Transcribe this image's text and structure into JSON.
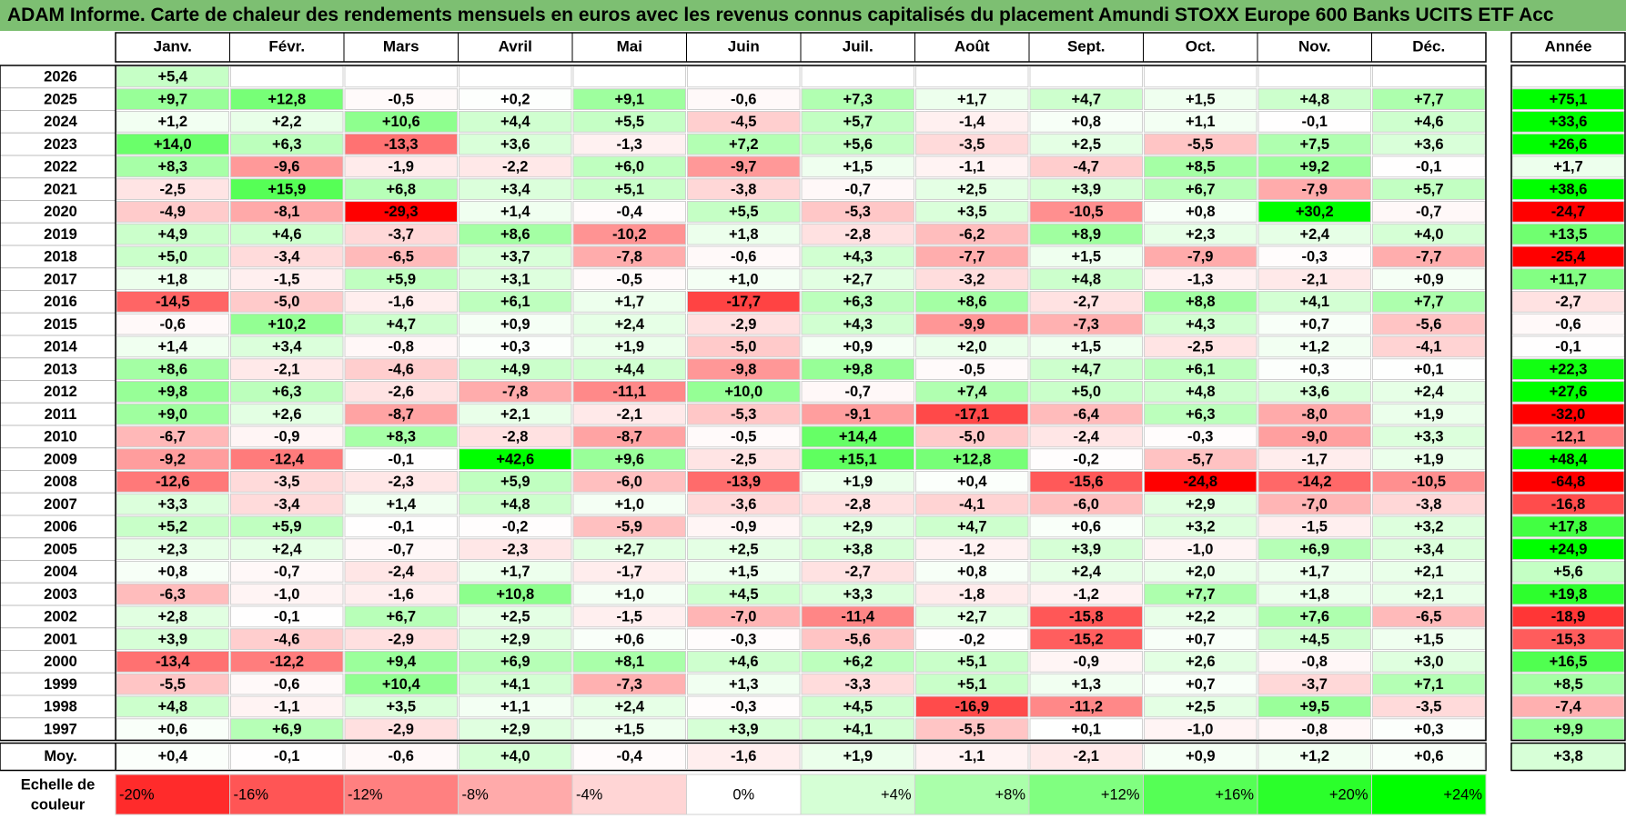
{
  "title": "ADAM Informe. Carte de chaleur des rendements mensuels en euros avec les revenus connus capitalisés du placement Amundi STOXX Europe 600 Banks UCITS ETF Acc",
  "chart_data": {
    "type": "heatmap",
    "title": "ADAM Informe. Carte de chaleur des rendements mensuels en euros avec les revenus connus capitalisés du placement Amundi STOXX Europe 600 Banks UCITS ETF Acc",
    "months": [
      "Janv.",
      "Févr.",
      "Mars",
      "Avril",
      "Mai",
      "Juin",
      "Juil.",
      "Août",
      "Sept.",
      "Oct.",
      "Nov.",
      "Déc."
    ],
    "year_header": "Année",
    "rows": [
      {
        "year": "2026",
        "months": [
          "+5,4",
          "",
          "",
          "",
          "",
          "",
          "",
          "",
          "",
          "",
          "",
          ""
        ],
        "annual": ""
      },
      {
        "year": "2025",
        "months": [
          "+9,7",
          "+12,8",
          "-0,5",
          "+0,2",
          "+9,1",
          "-0,6",
          "+7,3",
          "+1,7",
          "+4,7",
          "+1,5",
          "+4,8",
          "+7,7"
        ],
        "annual": "+75,1"
      },
      {
        "year": "2024",
        "months": [
          "+1,2",
          "+2,2",
          "+10,6",
          "+4,4",
          "+5,5",
          "-4,5",
          "+5,7",
          "-1,4",
          "+0,8",
          "+1,1",
          "-0,1",
          "+4,6"
        ],
        "annual": "+33,6"
      },
      {
        "year": "2023",
        "months": [
          "+14,0",
          "+6,3",
          "-13,3",
          "+3,6",
          "-1,3",
          "+7,2",
          "+5,6",
          "-3,5",
          "+2,5",
          "-5,5",
          "+7,5",
          "+3,6"
        ],
        "annual": "+26,6"
      },
      {
        "year": "2022",
        "months": [
          "+8,3",
          "-9,6",
          "-1,9",
          "-2,2",
          "+6,0",
          "-9,7",
          "+1,5",
          "-1,1",
          "-4,7",
          "+8,5",
          "+9,2",
          "-0,1"
        ],
        "annual": "+1,7"
      },
      {
        "year": "2021",
        "months": [
          "-2,5",
          "+15,9",
          "+6,8",
          "+3,4",
          "+5,1",
          "-3,8",
          "-0,7",
          "+2,5",
          "+3,9",
          "+6,7",
          "-7,9",
          "+5,7"
        ],
        "annual": "+38,6"
      },
      {
        "year": "2020",
        "months": [
          "-4,9",
          "-8,1",
          "-29,3",
          "+1,4",
          "-0,4",
          "+5,5",
          "-5,3",
          "+3,5",
          "-10,5",
          "+0,8",
          "+30,2",
          "-0,7"
        ],
        "annual": "-24,7"
      },
      {
        "year": "2019",
        "months": [
          "+4,9",
          "+4,6",
          "-3,7",
          "+8,6",
          "-10,2",
          "+1,8",
          "-2,8",
          "-6,2",
          "+8,9",
          "+2,3",
          "+2,4",
          "+4,0"
        ],
        "annual": "+13,5"
      },
      {
        "year": "2018",
        "months": [
          "+5,0",
          "-3,4",
          "-6,5",
          "+3,7",
          "-7,8",
          "-0,6",
          "+4,3",
          "-7,7",
          "+1,5",
          "-7,9",
          "-0,3",
          "-7,7"
        ],
        "annual": "-25,4"
      },
      {
        "year": "2017",
        "months": [
          "+1,8",
          "-1,5",
          "+5,9",
          "+3,1",
          "-0,5",
          "+1,0",
          "+2,7",
          "-3,2",
          "+4,8",
          "-1,3",
          "-2,1",
          "+0,9"
        ],
        "annual": "+11,7"
      },
      {
        "year": "2016",
        "months": [
          "-14,5",
          "-5,0",
          "-1,6",
          "+6,1",
          "+1,7",
          "-17,7",
          "+6,3",
          "+8,6",
          "-2,7",
          "+8,8",
          "+4,1",
          "+7,7"
        ],
        "annual": "-2,7"
      },
      {
        "year": "2015",
        "months": [
          "-0,6",
          "+10,2",
          "+4,7",
          "+0,9",
          "+2,4",
          "-2,9",
          "+4,3",
          "-9,9",
          "-7,3",
          "+4,3",
          "+0,7",
          "-5,6"
        ],
        "annual": "-0,6"
      },
      {
        "year": "2014",
        "months": [
          "+1,4",
          "+3,4",
          "-0,8",
          "+0,3",
          "+1,9",
          "-5,0",
          "+0,9",
          "+2,0",
          "+1,5",
          "-2,5",
          "+1,2",
          "-4,1"
        ],
        "annual": "-0,1"
      },
      {
        "year": "2013",
        "months": [
          "+8,6",
          "-2,1",
          "-4,6",
          "+4,9",
          "+4,4",
          "-9,8",
          "+9,8",
          "-0,5",
          "+4,7",
          "+6,1",
          "+0,3",
          "+0,1"
        ],
        "annual": "+22,3"
      },
      {
        "year": "2012",
        "months": [
          "+9,8",
          "+6,3",
          "-2,6",
          "-7,8",
          "-11,1",
          "+10,0",
          "-0,7",
          "+7,4",
          "+5,0",
          "+4,8",
          "+3,6",
          "+2,4"
        ],
        "annual": "+27,6"
      },
      {
        "year": "2011",
        "months": [
          "+9,0",
          "+2,6",
          "-8,7",
          "+2,1",
          "-2,1",
          "-5,3",
          "-9,1",
          "-17,1",
          "-6,4",
          "+6,3",
          "-8,0",
          "+1,9"
        ],
        "annual": "-32,0"
      },
      {
        "year": "2010",
        "months": [
          "-6,7",
          "-0,9",
          "+8,3",
          "-2,8",
          "-8,7",
          "-0,5",
          "+14,4",
          "-5,0",
          "-2,4",
          "-0,3",
          "-9,0",
          "+3,3"
        ],
        "annual": "-12,1"
      },
      {
        "year": "2009",
        "months": [
          "-9,2",
          "-12,4",
          "-0,1",
          "+42,6",
          "+9,6",
          "-2,5",
          "+15,1",
          "+12,8",
          "-0,2",
          "-5,7",
          "-1,7",
          "+1,9"
        ],
        "annual": "+48,4"
      },
      {
        "year": "2008",
        "months": [
          "-12,6",
          "-3,5",
          "-2,3",
          "+5,9",
          "-6,0",
          "-13,9",
          "+1,9",
          "+0,4",
          "-15,6",
          "-24,8",
          "-14,2",
          "-10,5"
        ],
        "annual": "-64,8"
      },
      {
        "year": "2007",
        "months": [
          "+3,3",
          "-3,4",
          "+1,4",
          "+4,8",
          "+1,0",
          "-3,6",
          "-2,8",
          "-4,1",
          "-6,0",
          "+2,9",
          "-7,0",
          "-3,8"
        ],
        "annual": "-16,8"
      },
      {
        "year": "2006",
        "months": [
          "+5,2",
          "+5,9",
          "-0,1",
          "-0,2",
          "-5,9",
          "-0,9",
          "+2,9",
          "+4,7",
          "+0,6",
          "+3,2",
          "-1,5",
          "+3,2"
        ],
        "annual": "+17,8"
      },
      {
        "year": "2005",
        "months": [
          "+2,3",
          "+2,4",
          "-0,7",
          "-2,3",
          "+2,7",
          "+2,5",
          "+3,8",
          "-1,2",
          "+3,9",
          "-1,0",
          "+6,9",
          "+3,4"
        ],
        "annual": "+24,9"
      },
      {
        "year": "2004",
        "months": [
          "+0,8",
          "-0,7",
          "-2,4",
          "+1,7",
          "-1,7",
          "+1,5",
          "-2,7",
          "+0,8",
          "+2,4",
          "+2,0",
          "+1,7",
          "+2,1"
        ],
        "annual": "+5,6"
      },
      {
        "year": "2003",
        "months": [
          "-6,3",
          "-1,0",
          "-1,6",
          "+10,8",
          "+1,0",
          "+4,5",
          "+3,3",
          "-1,8",
          "-1,2",
          "+7,7",
          "+1,8",
          "+2,1"
        ],
        "annual": "+19,8"
      },
      {
        "year": "2002",
        "months": [
          "+2,8",
          "-0,1",
          "+6,7",
          "+2,5",
          "-1,5",
          "-7,0",
          "-11,4",
          "+2,7",
          "-15,8",
          "+2,2",
          "+7,6",
          "-6,5"
        ],
        "annual": "-18,9"
      },
      {
        "year": "2001",
        "months": [
          "+3,9",
          "-4,6",
          "-2,9",
          "+2,9",
          "+0,6",
          "-0,3",
          "-5,6",
          "-0,2",
          "-15,2",
          "+0,7",
          "+4,5",
          "+1,5"
        ],
        "annual": "-15,3"
      },
      {
        "year": "2000",
        "months": [
          "-13,4",
          "-12,2",
          "+9,4",
          "+6,9",
          "+8,1",
          "+4,6",
          "+6,2",
          "+5,1",
          "-0,9",
          "+2,6",
          "-0,8",
          "+3,0"
        ],
        "annual": "+16,5"
      },
      {
        "year": "1999",
        "months": [
          "-5,5",
          "-0,6",
          "+10,4",
          "+4,1",
          "-7,3",
          "+1,3",
          "-3,3",
          "+5,1",
          "+1,3",
          "+0,7",
          "-3,7",
          "+7,1"
        ],
        "annual": "+8,5"
      },
      {
        "year": "1998",
        "months": [
          "+4,8",
          "-1,1",
          "+3,5",
          "+1,1",
          "+2,4",
          "-0,3",
          "+4,5",
          "-16,9",
          "-11,2",
          "+2,5",
          "+9,5",
          "-3,5"
        ],
        "annual": "-7,4"
      },
      {
        "year": "1997",
        "months": [
          "+0,6",
          "+6,9",
          "-2,9",
          "+2,9",
          "+1,5",
          "+3,9",
          "+4,1",
          "-5,5",
          "+0,1",
          "-1,0",
          "-0,8",
          "+0,3"
        ],
        "annual": "+9,9"
      }
    ],
    "average": {
      "label": "Moy.",
      "months": [
        "+0,4",
        "-0,1",
        "-0,6",
        "+4,0",
        "-0,4",
        "-1,6",
        "+1,9",
        "-1,1",
        "-2,1",
        "+0,9",
        "+1,2",
        "+0,6"
      ],
      "annual": "+3,8"
    },
    "legend": {
      "title_line1": "Echelle de",
      "title_line2": "couleur",
      "steps": [
        {
          "label": "-20%",
          "value": -20
        },
        {
          "label": "-16%",
          "value": -16
        },
        {
          "label": "-12%",
          "value": -12
        },
        {
          "label": "-8%",
          "value": -8
        },
        {
          "label": "-4%",
          "value": -4
        },
        {
          "label": "0%",
          "value": 0
        },
        {
          "label": "+4%",
          "value": 4
        },
        {
          "label": "+8%",
          "value": 8
        },
        {
          "label": "+12%",
          "value": 12
        },
        {
          "label": "+16%",
          "value": 16
        },
        {
          "label": "+20%",
          "value": 20
        },
        {
          "label": "+24%",
          "value": 24
        }
      ]
    },
    "color_scale": {
      "negative": "#ff0000",
      "neutral": "#ffffff",
      "positive": "#00ff00",
      "range": [
        -24,
        24
      ]
    }
  }
}
